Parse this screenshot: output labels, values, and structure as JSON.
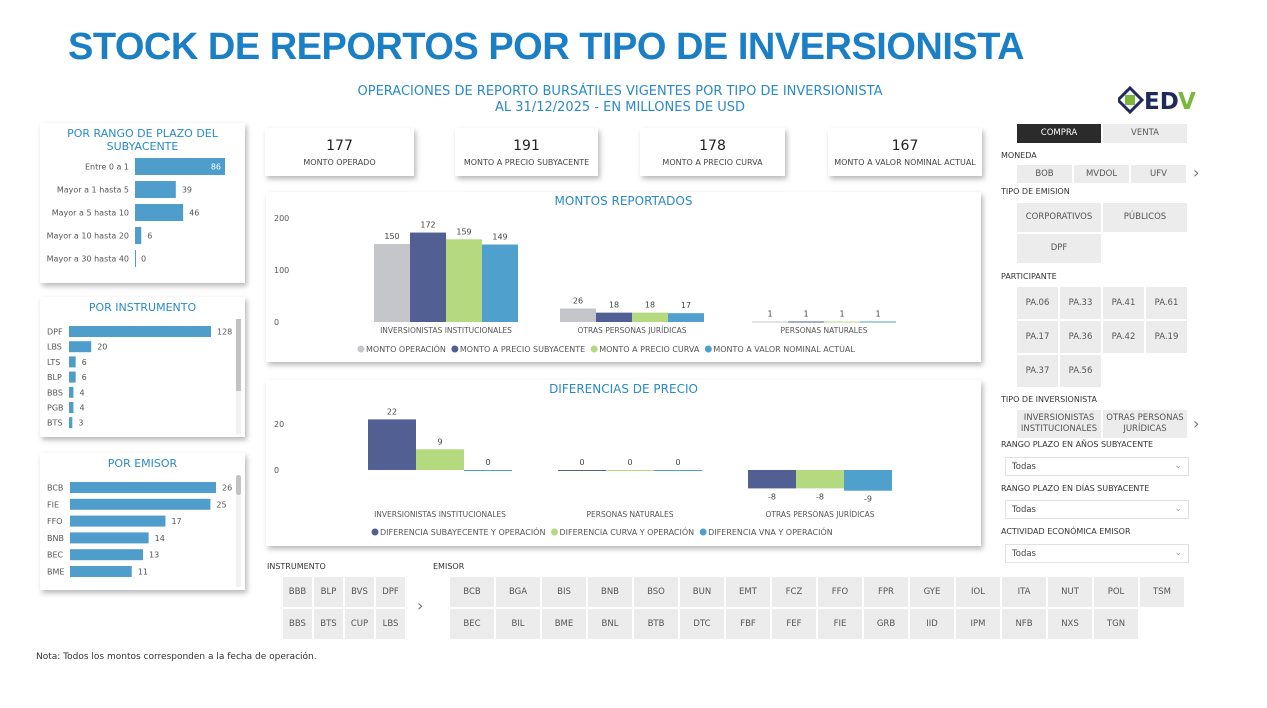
{
  "header": {
    "title": "STOCK DE REPORTOS POR TIPO DE INVERSIONISTA",
    "subtitle1": "OPERACIONES DE REPORTO BURSÁTILES VIGENTES POR TIPO DE INVERSIONISTA",
    "subtitle2": "AL 31/12/2025 - EN MILLONES DE USD",
    "logo_text": "EDV"
  },
  "colors": {
    "bar": "#4f9dcb",
    "gray": "#c4c6cb",
    "navy": "#525f93",
    "green": "#b4d97e",
    "blue": "#4fa0cc",
    "title": "#1b7fc6"
  },
  "kpis": [
    {
      "value": "177",
      "label": "MONTO OPERADO"
    },
    {
      "value": "191",
      "label": "MONTO A PRECIO SUBYACENTE"
    },
    {
      "value": "178",
      "label": "MONTO A PRECIO CURVA"
    },
    {
      "value": "167",
      "label": "MONTO A VALOR NOMINAL ACTUAL"
    }
  ],
  "chart_data": [
    {
      "type": "bar",
      "orientation": "horizontal",
      "title": "POR RANGO DE PLAZO DEL SUBYACENTE",
      "categories": [
        "Entre 0 a 1",
        "Mayor a 1 hasta 5",
        "Mayor a 5 hasta 10",
        "Mayor a 10 hasta 20",
        "Mayor a 30 hasta 40"
      ],
      "values": [
        86,
        39,
        46,
        6,
        0
      ]
    },
    {
      "type": "bar",
      "orientation": "horizontal",
      "title": "POR INSTRUMENTO",
      "categories": [
        "DPF",
        "LBS",
        "LTS",
        "BLP",
        "BBS",
        "PGB",
        "BTS"
      ],
      "values": [
        128,
        20,
        6,
        6,
        4,
        4,
        3
      ]
    },
    {
      "type": "bar",
      "orientation": "horizontal",
      "title": "POR EMISOR",
      "categories": [
        "BCB",
        "FIE",
        "FFO",
        "BNB",
        "BEC",
        "BME"
      ],
      "values": [
        26,
        25,
        17,
        14,
        13,
        11
      ]
    },
    {
      "type": "bar",
      "title": "MONTOS REPORTADOS",
      "categories": [
        "INVERSIONISTAS INSTITUCIONALES",
        "OTRAS PERSONAS JURÍDICAS",
        "PERSONAS NATURALES"
      ],
      "yticks": [
        "0",
        "100",
        "200"
      ],
      "ylim": [
        0,
        200
      ],
      "legend": "bottom",
      "series": [
        {
          "name": "MONTO OPERACIÓN",
          "values": [
            150,
            26,
            1
          ],
          "color": "#c4c6cb"
        },
        {
          "name": "MONTO A PRECIO SUBYACENTE",
          "values": [
            172,
            18,
            1
          ],
          "color": "#525f93"
        },
        {
          "name": "MONTO A PRECIO CURVA",
          "values": [
            159,
            18,
            1
          ],
          "color": "#b4d97e"
        },
        {
          "name": "MONTO A VALOR NOMINAL ACTUAL",
          "values": [
            149,
            17,
            1
          ],
          "color": "#4fa0cc"
        }
      ]
    },
    {
      "type": "bar",
      "title": "DIFERENCIAS DE PRECIO",
      "categories": [
        "INVERSIONISTAS INSTITUCIONALES",
        "PERSONAS NATURALES",
        "OTRAS PERSONAS JURÍDICAS"
      ],
      "yticks": [
        "0",
        "20"
      ],
      "ylim": [
        -10,
        25
      ],
      "legend": "bottom",
      "series": [
        {
          "name": "DIFERENCIA SUBAYECENTE Y OPERACIÓN",
          "values": [
            22,
            0,
            -8
          ],
          "color": "#525f93"
        },
        {
          "name": "DIFERENCIA CURVA Y OPERACIÓN",
          "values": [
            9,
            0,
            -8
          ],
          "color": "#b4d97e"
        },
        {
          "name": "DIFERENCIA VNA Y OPERACIÓN",
          "values": [
            0,
            0,
            -9
          ],
          "color": "#4fa0cc"
        }
      ]
    }
  ],
  "slicers": {
    "operacion": {
      "options": [
        "COMPRA",
        "VENTA"
      ],
      "selected": "COMPRA"
    },
    "moneda": {
      "label": "MONEDA",
      "options": [
        "BOB",
        "MVDOL",
        "UFV"
      ]
    },
    "tipo_emision": {
      "label": "TIPO DE EMISION",
      "options": [
        "CORPORATIVOS",
        "PÚBLICOS",
        "DPF"
      ]
    },
    "participante": {
      "label": "PARTICIPANTE",
      "options": [
        "PA.06",
        "PA.33",
        "PA.41",
        "PA.61",
        "PA.17",
        "PA.36",
        "PA.42",
        "PA.19",
        "PA.37",
        "PA.56"
      ]
    },
    "tipo_inversionista": {
      "label": "TIPO DE INVERSIONISTA",
      "options": [
        "INVERSIONISTAS INSTITUCIONALES",
        "OTRAS PERSONAS JURÍDICAS"
      ]
    },
    "rango_anios": {
      "label": "RANGO PLAZO EN AÑOS SUBYACENTE",
      "value": "Todas"
    },
    "rango_dias": {
      "label": "RANGO PLAZO EN DÍAS SUBYACENTE",
      "value": "Todas"
    },
    "actividad": {
      "label": "ACTIVIDAD ECONÓMICA EMISOR",
      "value": "Todas"
    },
    "instrumento": {
      "label": "INSTRUMENTO",
      "options": [
        "BBB",
        "BLP",
        "BVS",
        "DPF",
        "BBS",
        "BTS",
        "CUP",
        "LBS"
      ]
    },
    "emisor": {
      "label": "EMISOR",
      "options": [
        "BCB",
        "BGA",
        "BIS",
        "BNB",
        "BSO",
        "BUN",
        "EMT",
        "FCZ",
        "FFO",
        "FPR",
        "GYE",
        "IOL",
        "ITA",
        "NUT",
        "POL",
        "TSM",
        "BEC",
        "BIL",
        "BME",
        "BNL",
        "BTB",
        "DTC",
        "FBF",
        "FEF",
        "FIE",
        "GRB",
        "IID",
        "IPM",
        "NFB",
        "NXS",
        "TGN"
      ]
    }
  },
  "note": "Nota: Todos los montos corresponden a la fecha de operación."
}
